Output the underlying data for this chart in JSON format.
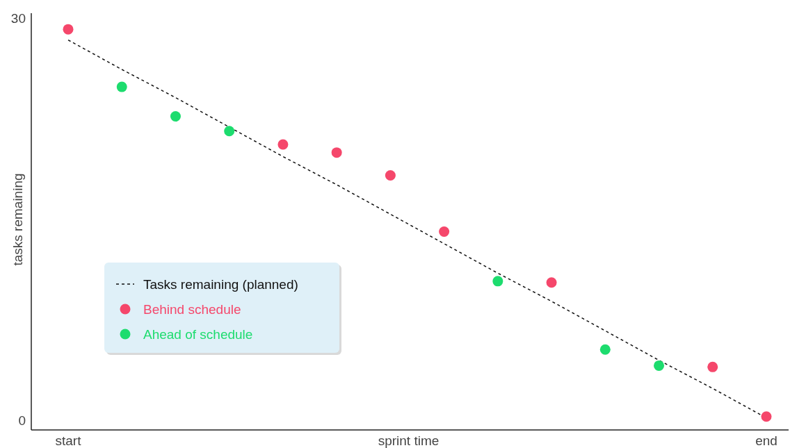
{
  "chart_data": {
    "type": "scatter",
    "xlabel": "sprint time",
    "ylabel": "tasks remaining",
    "categories": [
      "start",
      null,
      null,
      null,
      null,
      null,
      null,
      null,
      null,
      null,
      null,
      null,
      null,
      "end"
    ],
    "ylim": [
      -0.7,
      30.4
    ],
    "yticks": [
      0,
      30
    ],
    "legend": "left",
    "grid": false,
    "marker": "circle",
    "series": [
      {
        "name": "Tasks remaining (planned)",
        "type": "line",
        "line_style": "dashed",
        "marker": "none",
        "color": "#111111",
        "values": [
          28.4,
          26.2,
          24.1,
          21.9,
          19.7,
          17.6,
          15.4,
          13.2,
          11.0,
          8.9,
          6.7,
          4.5,
          2.4,
          0.2
        ]
      },
      {
        "name": "Behind schedule",
        "color": "#f5476b",
        "values": [
          29.2,
          null,
          null,
          null,
          20.6,
          20.0,
          18.3,
          14.1,
          null,
          10.3,
          null,
          null,
          4.0,
          0.3
        ]
      },
      {
        "name": "Ahead of schedule",
        "color": "#1ddc6e",
        "values": [
          null,
          24.9,
          22.7,
          21.6,
          null,
          null,
          null,
          null,
          10.4,
          null,
          5.3,
          4.1,
          null,
          null
        ]
      }
    ]
  }
}
